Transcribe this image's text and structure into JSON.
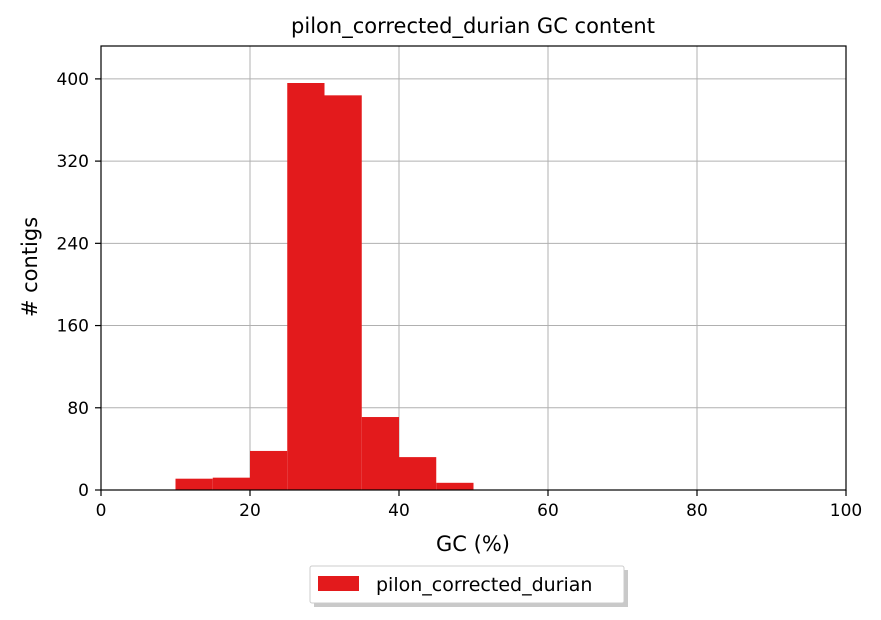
{
  "chart_data": {
    "type": "bar",
    "title": "pilon_corrected_durian GC content",
    "xlabel": "GC (%)",
    "ylabel": "# contigs",
    "xlim": [
      0,
      100
    ],
    "ylim": [
      0,
      432
    ],
    "xticks": [
      0,
      20,
      40,
      60,
      80,
      100
    ],
    "yticks": [
      0,
      80,
      160,
      240,
      320,
      400
    ],
    "grid": true,
    "legend_position": "bottom-center",
    "series": [
      {
        "name": "pilon_corrected_durian",
        "color": "#e31a1c",
        "bins": [
          {
            "x0": 10,
            "x1": 15,
            "value": 11
          },
          {
            "x0": 15,
            "x1": 20,
            "value": 12
          },
          {
            "x0": 20,
            "x1": 25,
            "value": 38
          },
          {
            "x0": 25,
            "x1": 30,
            "value": 396
          },
          {
            "x0": 30,
            "x1": 35,
            "value": 384
          },
          {
            "x0": 35,
            "x1": 40,
            "value": 71
          },
          {
            "x0": 40,
            "x1": 45,
            "value": 32
          },
          {
            "x0": 45,
            "x1": 50,
            "value": 7
          }
        ]
      }
    ]
  }
}
